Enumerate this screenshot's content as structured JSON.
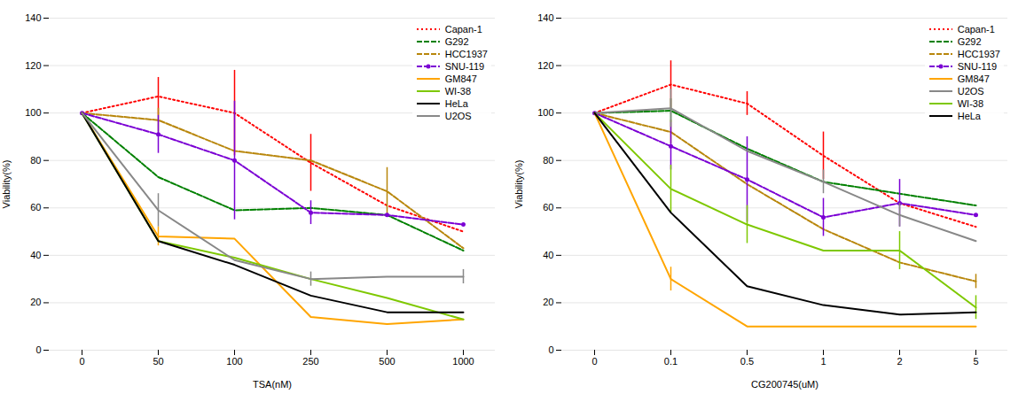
{
  "chart_data": [
    {
      "type": "line",
      "categories": [
        "0",
        "50",
        "100",
        "250",
        "500",
        "1000"
      ],
      "xlabel": "TSA(nM)",
      "ylabel": "Viability(%)",
      "ylim": [
        0,
        140
      ],
      "yticks": [
        0,
        20,
        40,
        60,
        80,
        100,
        120,
        140
      ],
      "grid": true,
      "legend": "upper right",
      "series": [
        {
          "name": "Capan-1",
          "color": "#ff0000",
          "line_style": "dotted",
          "values": [
            100,
            107,
            100,
            79,
            61,
            50
          ],
          "errors": [
            0,
            8,
            18,
            12,
            0,
            0
          ]
        },
        {
          "name": "G292",
          "color": "#008000",
          "line_style": "dashed",
          "values": [
            100,
            73,
            59,
            60,
            57,
            42
          ],
          "errors": [
            0,
            0,
            0,
            0,
            0,
            0
          ]
        },
        {
          "name": "HCC1937",
          "color": "#b8860b",
          "line_style": "dashed",
          "values": [
            100,
            97,
            84,
            80,
            67,
            43
          ],
          "errors": [
            0,
            5,
            0,
            0,
            10,
            0
          ]
        },
        {
          "name": "SNU-119",
          "color": "#7b00d4",
          "line_style": "dashed",
          "marker": "dot",
          "values": [
            100,
            91,
            80,
            58,
            57,
            53
          ],
          "errors": [
            0,
            8,
            25,
            5,
            0,
            0
          ]
        },
        {
          "name": "GM847",
          "color": "#ffa500",
          "line_style": "solid",
          "values": [
            100,
            48,
            47,
            14,
            11,
            13
          ],
          "errors": [
            0,
            4,
            0,
            0,
            0,
            0
          ]
        },
        {
          "name": "WI-38",
          "color": "#7ec800",
          "line_style": "solid",
          "values": [
            100,
            46,
            39,
            30,
            22,
            13
          ],
          "errors": [
            0,
            0,
            0,
            0,
            0,
            0
          ]
        },
        {
          "name": "HeLa",
          "color": "#000000",
          "line_style": "solid",
          "values": [
            100,
            46,
            36,
            23,
            16,
            16
          ],
          "errors": [
            0,
            0,
            0,
            0,
            0,
            0
          ]
        },
        {
          "name": "U2OS",
          "color": "#888888",
          "line_style": "solid",
          "values": [
            100,
            59,
            38,
            30,
            31,
            31
          ],
          "errors": [
            0,
            7,
            0,
            3,
            0,
            3
          ]
        }
      ]
    },
    {
      "type": "line",
      "categories": [
        "0",
        "0.1",
        "0.5",
        "1",
        "2",
        "5"
      ],
      "xlabel": "CG200745(uM)",
      "ylabel": "Viability(%)",
      "ylim": [
        0,
        140
      ],
      "yticks": [
        0,
        20,
        40,
        60,
        80,
        100,
        120,
        140
      ],
      "grid": true,
      "legend": "upper right",
      "series": [
        {
          "name": "Capan-1",
          "color": "#ff0000",
          "line_style": "dotted",
          "values": [
            100,
            112,
            104,
            82,
            62,
            52
          ],
          "errors": [
            0,
            10,
            5,
            10,
            0,
            0
          ]
        },
        {
          "name": "G292",
          "color": "#008000",
          "line_style": "dashed",
          "values": [
            100,
            101,
            85,
            71,
            66,
            61
          ],
          "errors": [
            0,
            5,
            0,
            0,
            0,
            0
          ]
        },
        {
          "name": "HCC1937",
          "color": "#b8860b",
          "line_style": "dashed",
          "values": [
            100,
            92,
            70,
            51,
            37,
            29
          ],
          "errors": [
            0,
            5,
            0,
            0,
            0,
            3
          ]
        },
        {
          "name": "SNU-119",
          "color": "#7b00d4",
          "line_style": "dashed",
          "marker": "dot",
          "values": [
            100,
            86,
            72,
            56,
            62,
            57
          ],
          "errors": [
            0,
            10,
            18,
            8,
            10,
            0
          ]
        },
        {
          "name": "GM847",
          "color": "#ffa500",
          "line_style": "solid",
          "values": [
            100,
            30,
            10,
            10,
            10,
            10
          ],
          "errors": [
            0,
            5,
            0,
            0,
            0,
            0
          ]
        },
        {
          "name": "U2OS",
          "color": "#888888",
          "line_style": "solid",
          "values": [
            100,
            102,
            84,
            71,
            57,
            46
          ],
          "errors": [
            0,
            8,
            0,
            5,
            5,
            0
          ]
        },
        {
          "name": "WI-38",
          "color": "#7ec800",
          "line_style": "solid",
          "values": [
            100,
            68,
            53,
            42,
            42,
            18
          ],
          "errors": [
            0,
            10,
            8,
            0,
            8,
            5
          ]
        },
        {
          "name": "HeLa",
          "color": "#000000",
          "line_style": "solid",
          "values": [
            100,
            58,
            27,
            19,
            15,
            16
          ],
          "errors": [
            0,
            0,
            0,
            0,
            0,
            0
          ]
        }
      ]
    }
  ]
}
